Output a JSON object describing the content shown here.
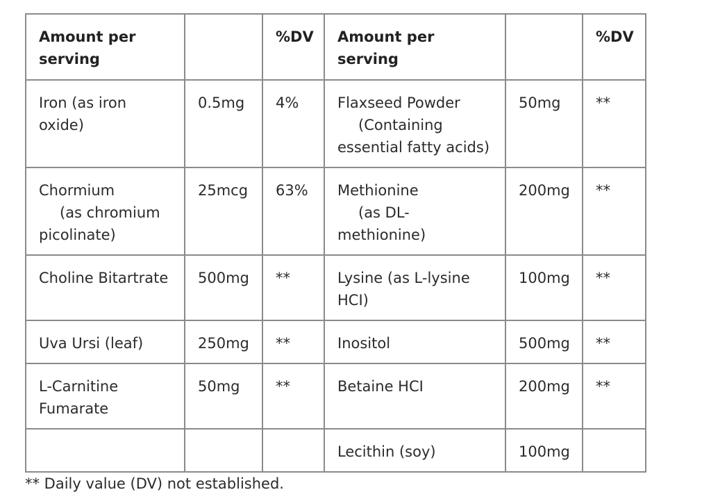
{
  "table": {
    "headers": [
      "Amount per serving",
      "",
      "%DV",
      "Amount per serving",
      "",
      "%DV"
    ],
    "rows": [
      {
        "left_name": [
          "Iron (as iron",
          "oxide)"
        ],
        "left_amount": "0.5mg",
        "left_dv": "4%",
        "right_name": [
          "Flaxseed Powder",
          "(Containing",
          "essential fatty acids)"
        ],
        "right_amount": "50mg",
        "right_dv": "**"
      },
      {
        "left_name": [
          "Chormium",
          "(as chromium",
          "picolinate)"
        ],
        "left_amount": "25mcg",
        "left_dv": "63%",
        "right_name": [
          "Methionine",
          "(as DL-",
          "methionine)"
        ],
        "right_amount": "200mg",
        "right_dv": "**"
      },
      {
        "left_name": [
          "Choline Bitartrate"
        ],
        "left_amount": "500mg",
        "left_dv": "**",
        "right_name": [
          "Lysine (as L-lysine",
          "HCI)"
        ],
        "right_amount": "100mg",
        "right_dv": "**"
      },
      {
        "left_name": [
          "Uva Ursi (leaf)"
        ],
        "left_amount": "250mg",
        "left_dv": "**",
        "right_name": [
          "Inositol"
        ],
        "right_amount": "500mg",
        "right_dv": "**"
      },
      {
        "left_name": [
          "L-Carnitine",
          "Fumarate"
        ],
        "left_amount": "50mg",
        "left_dv": "**",
        "right_name": [
          "Betaine HCI"
        ],
        "right_amount": "200mg",
        "right_dv": "**"
      },
      {
        "left_name": [
          ""
        ],
        "left_amount": "",
        "left_dv": "",
        "right_name": [
          "Lecithin (soy)"
        ],
        "right_amount": "100mg",
        "right_dv": ""
      }
    ]
  },
  "footnote": "** Daily value (DV) not established."
}
